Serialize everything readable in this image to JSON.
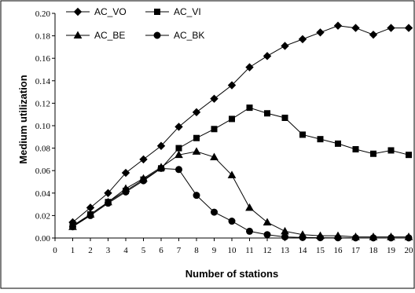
{
  "chart_data": {
    "type": "line",
    "title": "",
    "xlabel": "Number of stations",
    "ylabel": "Medium utilization",
    "xlim": [
      0,
      20
    ],
    "ylim": [
      0,
      0.2
    ],
    "x_ticks": [
      "0",
      "1",
      "2",
      "3",
      "4",
      "5",
      "6",
      "7",
      "8",
      "9",
      "10",
      "11",
      "12",
      "13",
      "14",
      "15",
      "16",
      "17",
      "18",
      "19",
      "20"
    ],
    "y_ticks": [
      "0.00",
      "0.02",
      "0.04",
      "0.06",
      "0.08",
      "0.10",
      "0.12",
      "0.14",
      "0.16",
      "0.18",
      "0.20"
    ],
    "grid": false,
    "legend_position": "top-left",
    "x": [
      1,
      2,
      3,
      4,
      5,
      6,
      7,
      8,
      9,
      10,
      11,
      12,
      13,
      14,
      15,
      16,
      17,
      18,
      19,
      20
    ],
    "series": [
      {
        "name": "AC_VO",
        "marker": "diamond",
        "values": [
          0.014,
          0.027,
          0.04,
          0.058,
          0.07,
          0.082,
          0.099,
          0.112,
          0.124,
          0.136,
          0.152,
          0.162,
          0.171,
          0.177,
          0.183,
          0.189,
          0.187,
          0.181,
          0.187,
          0.187
        ]
      },
      {
        "name": "AC_VI",
        "marker": "square",
        "values": [
          0.011,
          0.021,
          0.032,
          0.042,
          0.052,
          0.062,
          0.08,
          0.089,
          0.097,
          0.106,
          0.116,
          0.111,
          0.107,
          0.092,
          0.088,
          0.084,
          0.079,
          0.075,
          0.078,
          0.074
        ]
      },
      {
        "name": "AC_BE",
        "marker": "triangle",
        "values": [
          0.01,
          0.021,
          0.032,
          0.044,
          0.053,
          0.063,
          0.074,
          0.077,
          0.072,
          0.056,
          0.027,
          0.014,
          0.006,
          0.003,
          0.002,
          0.002,
          0.001,
          0.001,
          0.001,
          0.001
        ]
      },
      {
        "name": "AC_BK",
        "marker": "circle",
        "values": [
          0.01,
          0.02,
          0.031,
          0.041,
          0.051,
          0.062,
          0.061,
          0.038,
          0.023,
          0.015,
          0.006,
          0.003,
          0.001,
          0.0005,
          0.0003,
          0.0002,
          0.0001,
          0.0001,
          0.0001,
          0.0001
        ]
      }
    ]
  }
}
